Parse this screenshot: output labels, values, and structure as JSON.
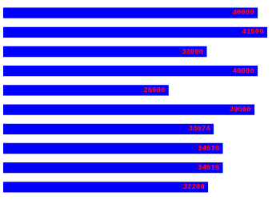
{
  "chart_data": {
    "type": "bar",
    "orientation": "horizontal",
    "categories": [
      null,
      null,
      null,
      null,
      null,
      null,
      null,
      null,
      null,
      null
    ],
    "values": [
      40000,
      41500,
      32000,
      40000,
      26000,
      39500,
      33074,
      34518,
      34518,
      32200
    ],
    "color": "#0000ff",
    "xlim": [
      0,
      43000
    ],
    "data_labels": true,
    "tick_labels": false,
    "grid": false
  }
}
